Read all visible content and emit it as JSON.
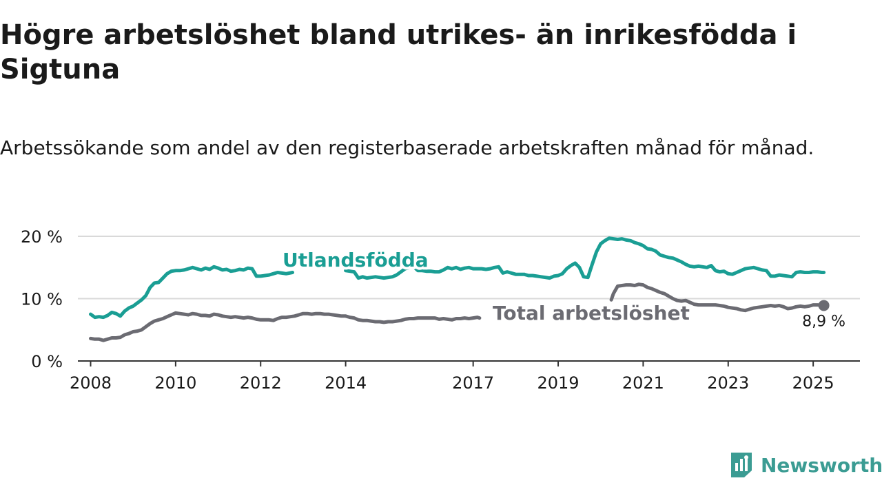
{
  "title": "Högre arbetslöshet bland utrikes- än inrikesfödda i Sigtuna",
  "subtitle": "Arbetssökande som andel av den registerbaserade arbetskraften månad för månad.",
  "logo": {
    "text": "Newsworthy",
    "icon": "newsworthy-logo-icon",
    "color": "#3b9c93"
  },
  "colors": {
    "utlandsfodda": "#1a9e94",
    "total": "#6b6b72",
    "axis": "#333333",
    "grid": "#d9d9d9",
    "text": "#1a1a1a"
  },
  "chart_data": {
    "type": "line",
    "title": "Högre arbetslöshet bland utrikes- än inrikesfödda i Sigtuna",
    "subtitle": "Arbetssökande som andel av den registerbaserade arbetskraften månad för månad.",
    "xlim": [
      2007.7,
      2026.1
    ],
    "ylim": [
      0,
      20
    ],
    "x_ticks": [
      2008,
      2010,
      2012,
      2014,
      2017,
      2019,
      2021,
      2023,
      2025
    ],
    "x_tick_labels": [
      "2008",
      "2010",
      "2012",
      "2014",
      "2017",
      "2019",
      "2021",
      "2023",
      "2025"
    ],
    "y_ticks": [
      0,
      10,
      20
    ],
    "y_tick_labels": [
      "0 %",
      "10 %",
      "20 %"
    ],
    "grid": true,
    "series": [
      {
        "name": "Utlandsfödda",
        "label_position": "inline",
        "color": "#1a9e94",
        "segments": [
          {
            "x": [
              2008.0,
              2008.1,
              2008.2,
              2008.3,
              2008.4,
              2008.5,
              2008.6,
              2008.7,
              2008.8,
              2008.9,
              2009.0,
              2009.1,
              2009.2,
              2009.3,
              2009.4,
              2009.5,
              2009.6,
              2009.7,
              2009.8,
              2009.9,
              2010.0,
              2010.1,
              2010.2,
              2010.3,
              2010.4,
              2010.5,
              2010.6,
              2010.7,
              2010.8,
              2010.9,
              2011.0,
              2011.1,
              2011.2,
              2011.3,
              2011.4,
              2011.5,
              2011.6,
              2011.7,
              2011.8,
              2011.9,
              2012.0,
              2012.1,
              2012.2,
              2012.3,
              2012.4,
              2012.5,
              2012.6,
              2012.75
            ],
            "y": [
              7.5,
              7.0,
              7.1,
              7.0,
              7.3,
              7.8,
              7.6,
              7.2,
              8.0,
              8.5,
              8.8,
              9.3,
              9.8,
              10.5,
              11.8,
              12.5,
              12.6,
              13.3,
              14.0,
              14.4,
              14.5,
              14.5,
              14.6,
              14.8,
              15.0,
              14.8,
              14.6,
              14.9,
              14.7,
              15.1,
              14.9,
              14.6,
              14.7,
              14.4,
              14.5,
              14.7,
              14.6,
              14.9,
              14.8,
              13.6,
              13.6,
              13.7,
              13.8,
              14.0,
              14.2,
              14.1,
              14.0,
              14.2
            ]
          },
          {
            "x": [
              2014.0,
              2014.1,
              2014.2,
              2014.3,
              2014.4,
              2014.5,
              2014.6,
              2014.7,
              2014.8,
              2014.9,
              2015.0,
              2015.1,
              2015.2,
              2015.3,
              2015.4,
              2015.5,
              2015.6,
              2015.7,
              2015.8,
              2015.9,
              2016.0,
              2016.1,
              2016.2,
              2016.3,
              2016.4,
              2016.5,
              2016.6,
              2016.7,
              2016.8,
              2016.9,
              2017.0,
              2017.1,
              2017.2,
              2017.3,
              2017.4,
              2017.5,
              2017.6,
              2017.7,
              2017.8,
              2017.9,
              2018.0,
              2018.1,
              2018.2,
              2018.3,
              2018.4,
              2018.5,
              2018.6,
              2018.7,
              2018.8,
              2018.9,
              2019.0,
              2019.1,
              2019.2,
              2019.3,
              2019.4,
              2019.5,
              2019.6,
              2019.7,
              2019.8,
              2019.9,
              2020.0,
              2020.1,
              2020.2,
              2020.3,
              2020.4,
              2020.5,
              2020.6,
              2020.7,
              2020.8,
              2020.9,
              2021.0,
              2021.1,
              2021.2,
              2021.3,
              2021.4,
              2021.5,
              2021.6,
              2021.7,
              2021.8,
              2021.9,
              2022.0,
              2022.1,
              2022.2,
              2022.3,
              2022.4,
              2022.5,
              2022.6,
              2022.7,
              2022.8,
              2022.9,
              2023.0,
              2023.1,
              2023.2,
              2023.3,
              2023.4,
              2023.5,
              2023.6,
              2023.7,
              2023.8,
              2023.9,
              2024.0,
              2024.1,
              2024.2,
              2024.3,
              2024.4,
              2024.5,
              2024.6,
              2024.7,
              2024.8,
              2024.9,
              2025.0,
              2025.1,
              2025.2,
              2025.25
            ],
            "y": [
              14.5,
              14.4,
              14.3,
              13.3,
              13.5,
              13.3,
              13.4,
              13.5,
              13.4,
              13.3,
              13.4,
              13.5,
              13.8,
              14.3,
              14.8,
              15.0,
              15.1,
              14.5,
              14.5,
              14.4,
              14.4,
              14.3,
              14.3,
              14.6,
              15.0,
              14.8,
              15.0,
              14.7,
              14.9,
              15.0,
              14.8,
              14.8,
              14.8,
              14.7,
              14.8,
              15.0,
              15.1,
              14.1,
              14.3,
              14.1,
              13.9,
              13.9,
              13.9,
              13.7,
              13.7,
              13.6,
              13.5,
              13.4,
              13.3,
              13.6,
              13.7,
              14.0,
              14.8,
              15.3,
              15.7,
              15.0,
              13.5,
              13.4,
              15.5,
              17.5,
              18.8,
              19.3,
              19.7,
              19.6,
              19.5,
              19.6,
              19.4,
              19.3,
              19.0,
              18.8,
              18.5,
              18.0,
              17.9,
              17.6,
              17.0,
              16.8,
              16.6,
              16.5,
              16.2,
              15.9,
              15.5,
              15.2,
              15.1,
              15.2,
              15.1,
              15.0,
              15.3,
              14.5,
              14.3,
              14.4,
              14.0,
              13.9,
              14.2,
              14.5,
              14.8,
              14.9,
              15.0,
              14.8,
              14.6,
              14.5,
              13.6,
              13.6,
              13.8,
              13.7,
              13.6,
              13.5,
              14.2,
              14.3,
              14.2,
              14.2,
              14.3,
              14.3,
              14.2,
              14.2
            ]
          }
        ]
      },
      {
        "name": "Total arbetslöshet",
        "label_position": "inline",
        "color": "#6b6b72",
        "end_label": "8,9 %",
        "segments": [
          {
            "x": [
              2008.0,
              2008.1,
              2008.2,
              2008.3,
              2008.4,
              2008.5,
              2008.6,
              2008.7,
              2008.8,
              2008.9,
              2009.0,
              2009.1,
              2009.2,
              2009.3,
              2009.4,
              2009.5,
              2009.6,
              2009.7,
              2009.8,
              2009.9,
              2010.0,
              2010.1,
              2010.2,
              2010.3,
              2010.4,
              2010.5,
              2010.6,
              2010.7,
              2010.8,
              2010.9,
              2011.0,
              2011.1,
              2011.2,
              2011.3,
              2011.4,
              2011.5,
              2011.6,
              2011.7,
              2011.8,
              2011.9,
              2012.0,
              2012.1,
              2012.2,
              2012.3,
              2012.4,
              2012.5,
              2012.6,
              2012.7,
              2012.8,
              2012.9,
              2013.0,
              2013.1,
              2013.2,
              2013.3,
              2013.4,
              2013.5,
              2013.6,
              2013.7,
              2013.8,
              2013.9,
              2014.0,
              2014.1,
              2014.2,
              2014.3,
              2014.4,
              2014.5,
              2014.6,
              2014.7,
              2014.8,
              2014.9,
              2015.0,
              2015.1,
              2015.2,
              2015.3,
              2015.4,
              2015.5,
              2015.6,
              2015.7,
              2015.8,
              2015.9,
              2016.0,
              2016.1,
              2016.2,
              2016.3,
              2016.4,
              2016.5,
              2016.6,
              2016.7,
              2016.8,
              2016.9,
              2017.0,
              2017.1,
              2017.15
            ],
            "y": [
              3.6,
              3.5,
              3.5,
              3.3,
              3.5,
              3.7,
              3.7,
              3.8,
              4.2,
              4.4,
              4.7,
              4.8,
              5.0,
              5.5,
              6.0,
              6.4,
              6.6,
              6.8,
              7.1,
              7.4,
              7.7,
              7.6,
              7.5,
              7.4,
              7.6,
              7.5,
              7.3,
              7.3,
              7.2,
              7.5,
              7.4,
              7.2,
              7.1,
              7.0,
              7.1,
              7.0,
              6.9,
              7.0,
              6.9,
              6.7,
              6.6,
              6.6,
              6.6,
              6.5,
              6.8,
              7.0,
              7.0,
              7.1,
              7.2,
              7.4,
              7.6,
              7.6,
              7.5,
              7.6,
              7.6,
              7.5,
              7.5,
              7.4,
              7.3,
              7.2,
              7.2,
              7.0,
              6.9,
              6.6,
              6.5,
              6.5,
              6.4,
              6.3,
              6.3,
              6.2,
              6.3,
              6.3,
              6.4,
              6.5,
              6.7,
              6.8,
              6.8,
              6.9,
              6.9,
              6.9,
              6.9,
              6.9,
              6.7,
              6.8,
              6.7,
              6.6,
              6.8,
              6.8,
              6.9,
              6.8,
              6.9,
              7.0,
              6.9
            ]
          },
          {
            "x": [
              2020.25,
              2020.3,
              2020.4,
              2020.5,
              2020.6,
              2020.7,
              2020.8,
              2020.9,
              2021.0,
              2021.1,
              2021.2,
              2021.3,
              2021.4,
              2021.5,
              2021.6,
              2021.7,
              2021.8,
              2021.9,
              2022.0,
              2022.1,
              2022.2,
              2022.3,
              2022.4,
              2022.5,
              2022.6,
              2022.7,
              2022.8,
              2022.9,
              2023.0,
              2023.1,
              2023.2,
              2023.3,
              2023.4,
              2023.5,
              2023.6,
              2023.7,
              2023.8,
              2023.9,
              2024.0,
              2024.1,
              2024.2,
              2024.3,
              2024.4,
              2024.5,
              2024.6,
              2024.7,
              2024.8,
              2024.9,
              2025.0,
              2025.1,
              2025.25
            ],
            "y": [
              9.8,
              10.8,
              12.0,
              12.1,
              12.2,
              12.2,
              12.1,
              12.3,
              12.2,
              11.8,
              11.6,
              11.3,
              11.0,
              10.8,
              10.4,
              10.0,
              9.7,
              9.6,
              9.7,
              9.4,
              9.1,
              9.0,
              9.0,
              9.0,
              9.0,
              9.0,
              8.9,
              8.8,
              8.6,
              8.5,
              8.4,
              8.2,
              8.1,
              8.3,
              8.5,
              8.6,
              8.7,
              8.8,
              8.9,
              8.8,
              8.9,
              8.7,
              8.4,
              8.5,
              8.7,
              8.8,
              8.7,
              8.8,
              9.0,
              9.0,
              8.9
            ]
          }
        ]
      }
    ]
  }
}
